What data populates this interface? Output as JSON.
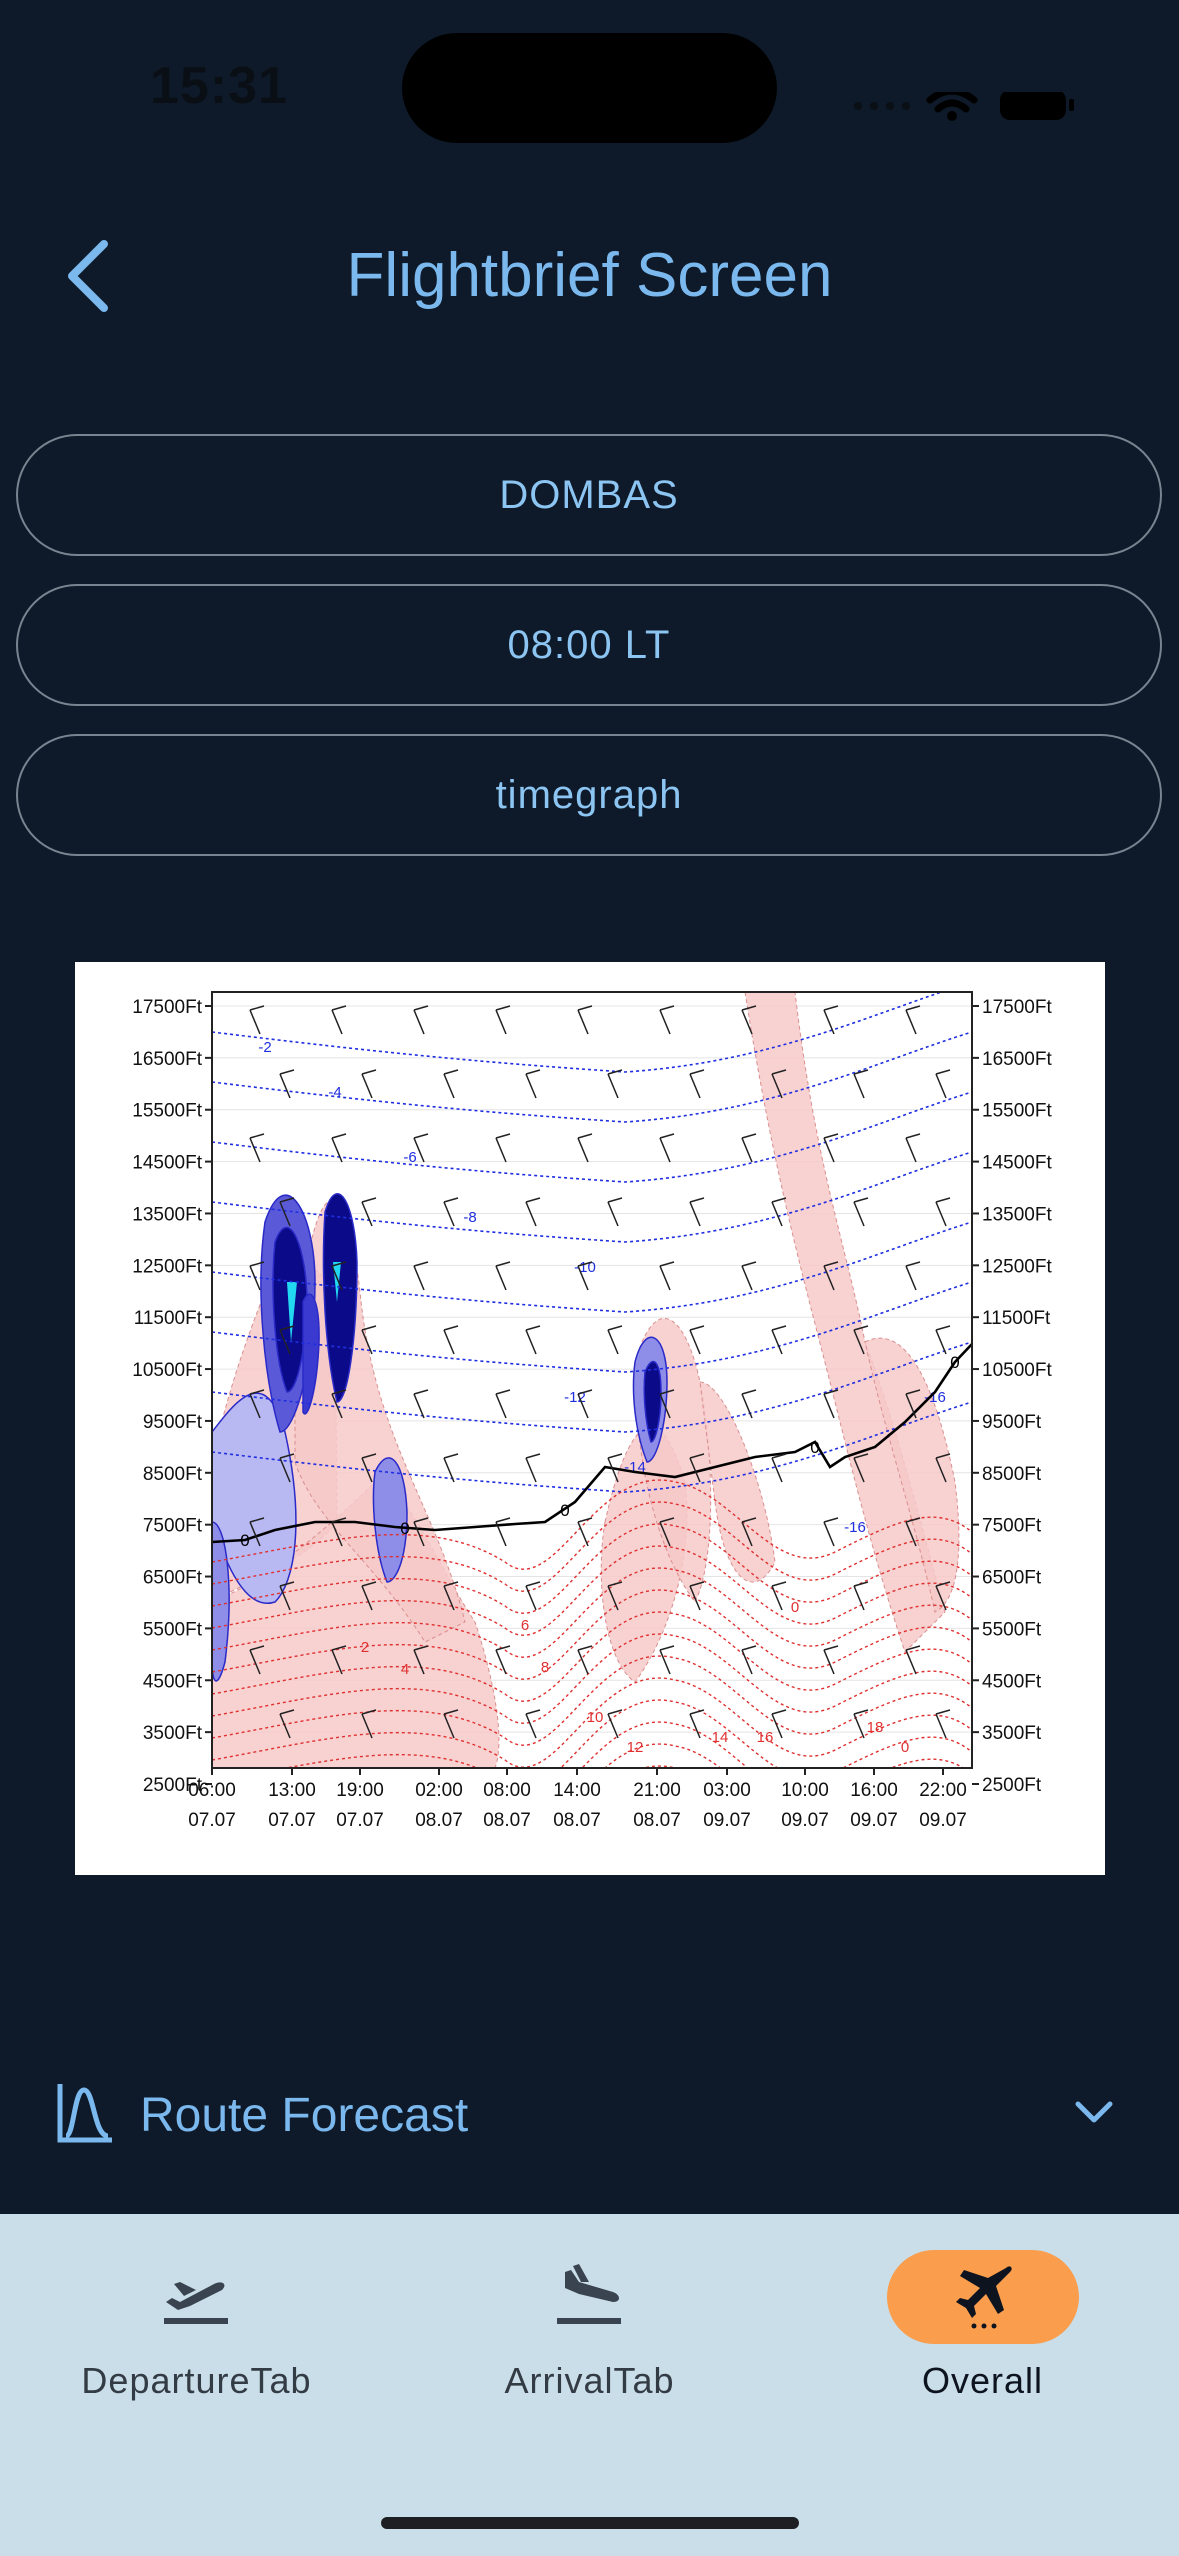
{
  "status_bar": {
    "time": "15:31"
  },
  "header": {
    "title": "Flightbrief Screen"
  },
  "selectors": {
    "location": "DOMBAS",
    "time": "08:00 LT",
    "view": "timegraph"
  },
  "chart_data": {
    "type": "heatmap",
    "y_tick_labels": [
      "17500Ft",
      "16500Ft",
      "15500Ft",
      "14500Ft",
      "13500Ft",
      "12500Ft",
      "11500Ft",
      "10500Ft",
      "9500Ft",
      "8500Ft",
      "7500Ft",
      "6500Ft",
      "5500Ft",
      "4500Ft",
      "3500Ft",
      "2500Ft"
    ],
    "x_ticks": [
      {
        "time": "06:00",
        "date": "07.07"
      },
      {
        "time": "13:00",
        "date": "07.07"
      },
      {
        "time": "19:00",
        "date": "07.07"
      },
      {
        "time": "02:00",
        "date": "08.07"
      },
      {
        "time": "08:00",
        "date": "08.07"
      },
      {
        "time": "14:00",
        "date": "08.07"
      },
      {
        "time": "21:00",
        "date": "08.07"
      },
      {
        "time": "03:00",
        "date": "09.07"
      },
      {
        "time": "10:00",
        "date": "09.07"
      },
      {
        "time": "16:00",
        "date": "09.07"
      },
      {
        "time": "22:00",
        "date": "09.07"
      }
    ],
    "temperature_contour_labels": [
      "-16",
      "-14",
      "-12",
      "-10",
      "-8",
      "-6",
      "-4",
      "-2",
      "0",
      "2",
      "4",
      "6",
      "8",
      "10",
      "12",
      "14",
      "16",
      "18"
    ],
    "colors": {
      "negative_isotherm": "#1f2ee0",
      "positive_isotherm": "#e03030",
      "freezing_level": "#000000",
      "humidity_fill": "#f7c9c9",
      "icing_fill": "#0b0b8a"
    }
  },
  "route_forecast": {
    "label": "Route Forecast",
    "icon": "route-graph-icon",
    "chevron": "chevron-down-icon"
  },
  "tabs": [
    {
      "label": "DepartureTab",
      "icon": "departure-plane-icon",
      "active": false
    },
    {
      "label": "ArrivalTab",
      "icon": "arrival-plane-icon",
      "active": false
    },
    {
      "label": "Overall",
      "icon": "plane-icon",
      "active": true
    }
  ],
  "theme": {
    "background": "#0e1a29",
    "accent": "#7ab8ee",
    "tab_bar": "#c9dee9",
    "active_tab": "#fa9d4c"
  }
}
